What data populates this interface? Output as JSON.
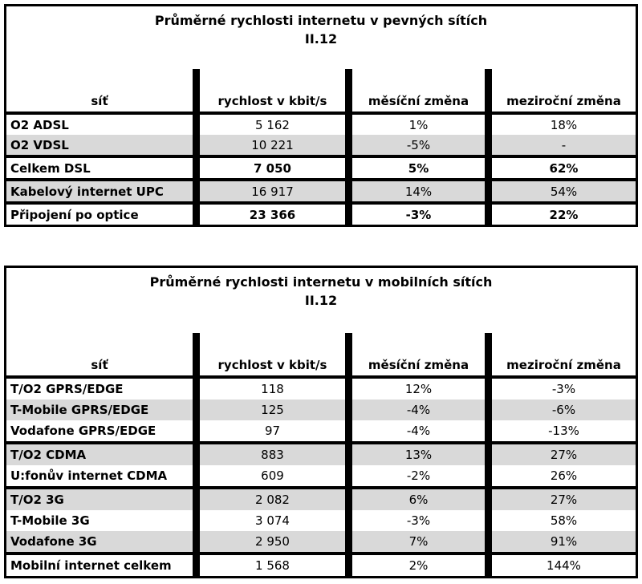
{
  "colors": {
    "border": "#000000",
    "text": "#000000",
    "shaded_row": "#d9d9d9",
    "background": "#ffffff"
  },
  "chart_data": [
    {
      "type": "table",
      "title": "Průměrné rychlosti internetu v pevných sítích",
      "subtitle": "II.12",
      "columns": [
        "síť",
        "rychlost v kbit/s",
        "měsíční změna",
        "meziroční změna"
      ],
      "rows": [
        {
          "label": "O2 ADSL",
          "speed": "5 162",
          "monthly": "1%",
          "yearly": "18%",
          "shaded": false,
          "bold_values": false,
          "group_end": false
        },
        {
          "label": "O2 VDSL",
          "speed": "10 221",
          "monthly": "-5%",
          "yearly": "-",
          "shaded": true,
          "bold_values": false,
          "group_end": true
        },
        {
          "label": "Celkem DSL",
          "speed": "7 050",
          "monthly": "5%",
          "yearly": "62%",
          "shaded": false,
          "bold_values": true,
          "group_end": true
        },
        {
          "label": "Kabelový internet UPC",
          "speed": "16 917",
          "monthly": "14%",
          "yearly": "54%",
          "shaded": true,
          "bold_values": false,
          "group_end": true
        },
        {
          "label": "Připojení po optice",
          "speed": "23 366",
          "monthly": "-3%",
          "yearly": "22%",
          "shaded": false,
          "bold_values": true,
          "group_end": false
        }
      ]
    },
    {
      "type": "table",
      "title": "Průměrné rychlosti internetu v mobilních sítích",
      "subtitle": "II.12",
      "columns": [
        "síť",
        "rychlost v kbit/s",
        "měsíční změna",
        "meziroční změna"
      ],
      "rows": [
        {
          "label": "T/O2 GPRS/EDGE",
          "speed": "118",
          "monthly": "12%",
          "yearly": "-3%",
          "shaded": false,
          "bold_values": false,
          "group_end": false
        },
        {
          "label": "T-Mobile GPRS/EDGE",
          "speed": "125",
          "monthly": "-4%",
          "yearly": "-6%",
          "shaded": true,
          "bold_values": false,
          "group_end": false
        },
        {
          "label": "Vodafone GPRS/EDGE",
          "speed": "97",
          "monthly": "-4%",
          "yearly": "-13%",
          "shaded": false,
          "bold_values": false,
          "group_end": true
        },
        {
          "label": "T/O2 CDMA",
          "speed": "883",
          "monthly": "13%",
          "yearly": "27%",
          "shaded": true,
          "bold_values": false,
          "group_end": false
        },
        {
          "label": "U:fonův internet CDMA",
          "speed": "609",
          "monthly": "-2%",
          "yearly": "26%",
          "shaded": false,
          "bold_values": false,
          "group_end": true
        },
        {
          "label": "T/O2 3G",
          "speed": "2 082",
          "monthly": "6%",
          "yearly": "27%",
          "shaded": true,
          "bold_values": false,
          "group_end": false
        },
        {
          "label": "T-Mobile 3G",
          "speed": "3 074",
          "monthly": "-3%",
          "yearly": "58%",
          "shaded": false,
          "bold_values": false,
          "group_end": false
        },
        {
          "label": "Vodafone 3G",
          "speed": "2 950",
          "monthly": "7%",
          "yearly": "91%",
          "shaded": true,
          "bold_values": false,
          "group_end": true
        },
        {
          "label": "Mobilní internet celkem",
          "speed": "1 568",
          "monthly": "2%",
          "yearly": "144%",
          "shaded": false,
          "bold_values": false,
          "group_end": false
        }
      ]
    }
  ]
}
